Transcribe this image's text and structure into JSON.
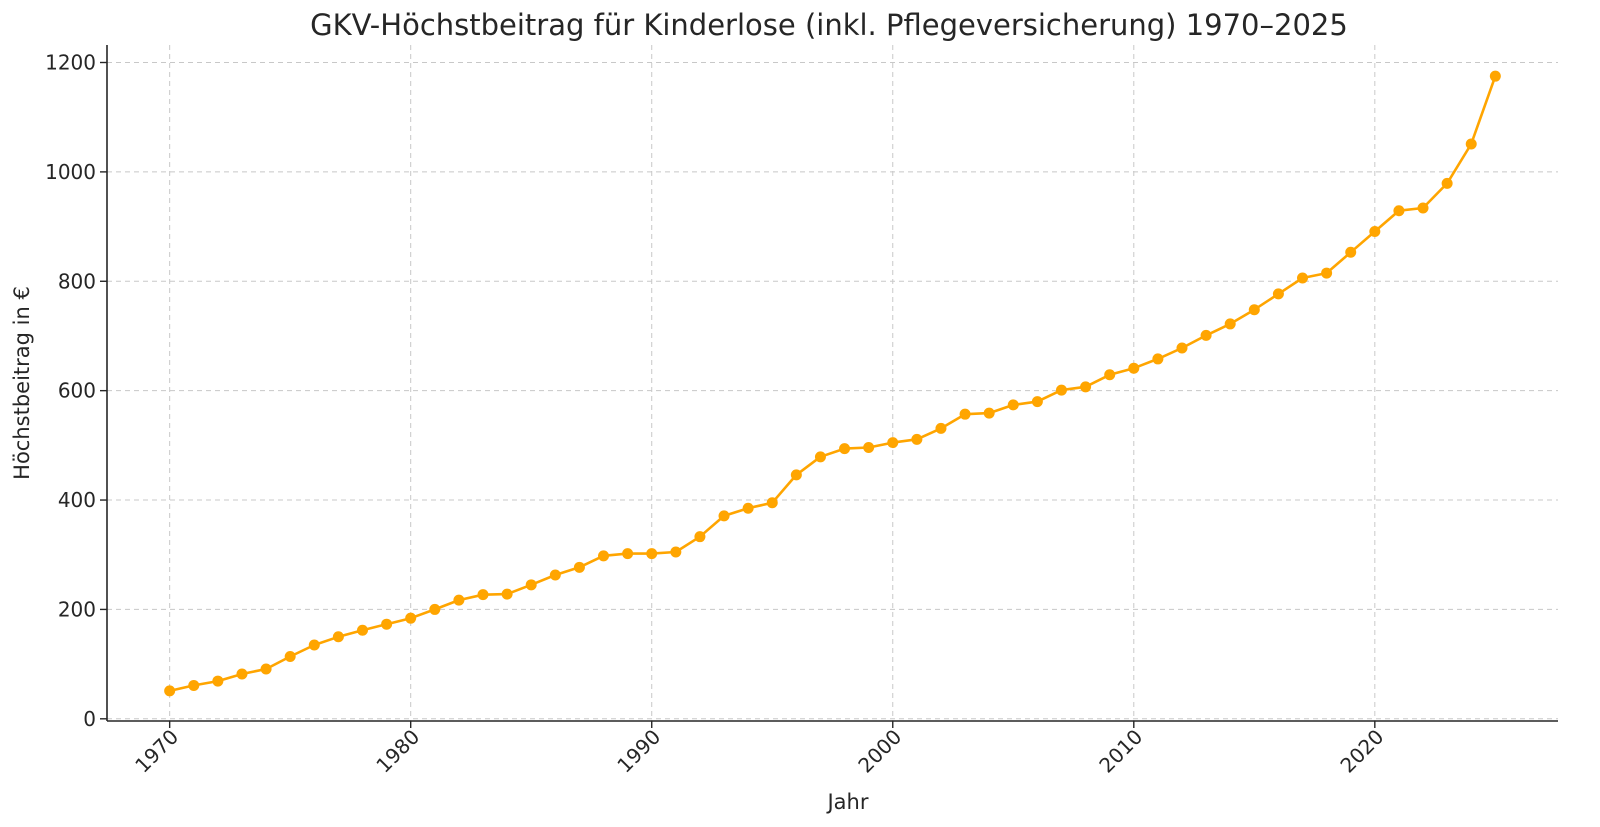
{
  "chart_data": {
    "type": "line",
    "title": "GKV-Höchstbeitrag für Kinderlose (inkl. Pflegeversicherung) 1970–2025",
    "xlabel": "Jahr",
    "ylabel": "Höchstbeitrag in €",
    "xlim": [
      1967.4,
      2027.6
    ],
    "ylim": [
      -4,
      1232
    ],
    "xticks": [
      1970,
      1980,
      1990,
      2000,
      2010,
      2020
    ],
    "yticks": [
      0,
      200,
      400,
      600,
      800,
      1000,
      1200
    ],
    "grid": true,
    "legend": "none",
    "color": "#FFA500",
    "series": [
      {
        "x": [
          1970,
          1971,
          1972,
          1973,
          1974,
          1975,
          1976,
          1977,
          1978,
          1979,
          1980,
          1981,
          1982,
          1983,
          1984,
          1985,
          1986,
          1987,
          1988,
          1989,
          1990,
          1991,
          1992,
          1993,
          1994,
          1995,
          1996,
          1997,
          1998,
          1999,
          2000,
          2001,
          2002,
          2003,
          2004,
          2005,
          2006,
          2007,
          2008,
          2009,
          2010,
          2011,
          2012,
          2013,
          2014,
          2015,
          2016,
          2017,
          2018,
          2019,
          2020,
          2021,
          2022,
          2023,
          2024,
          2025
        ],
        "values": [
          51,
          61,
          69,
          82,
          91,
          114,
          135,
          150,
          162,
          173,
          184,
          200,
          217,
          227,
          228,
          245,
          263,
          277,
          298,
          302,
          302,
          305,
          333,
          371,
          385,
          395,
          446,
          479,
          494,
          496,
          505,
          511,
          531,
          557,
          559,
          574,
          580,
          601,
          607,
          629,
          641,
          658,
          678,
          701,
          722,
          748,
          777,
          806,
          815,
          853,
          891,
          929,
          934,
          979,
          1051,
          1175
        ]
      }
    ]
  }
}
